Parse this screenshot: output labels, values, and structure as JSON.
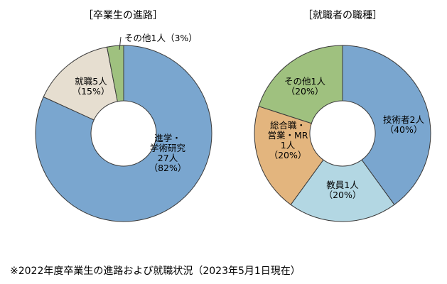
{
  "chart_data": [
    {
      "type": "pie",
      "title": "［卒業生の進路］",
      "slices": [
        {
          "label_lines": [
            "進学・",
            "学術研究",
            "27人",
            "（82%）"
          ],
          "value": 27,
          "percent": 82,
          "color": "#7aa6cf"
        },
        {
          "label_lines": [
            "就職5人",
            "（15%）"
          ],
          "value": 5,
          "percent": 15,
          "color": "#e6ded0"
        },
        {
          "label_lines": [
            "その他1人（3%）"
          ],
          "value": 1,
          "percent": 3,
          "color": "#9fc17f"
        }
      ]
    },
    {
      "type": "pie",
      "title": "［就職者の職種］",
      "slices": [
        {
          "label_lines": [
            "技術者2人",
            "（40%）"
          ],
          "value": 2,
          "percent": 40,
          "color": "#7aa6cf"
        },
        {
          "label_lines": [
            "教員1人",
            "（20%）"
          ],
          "value": 1,
          "percent": 20,
          "color": "#b3d7e3"
        },
        {
          "label_lines": [
            "総合職・",
            "営業・MR",
            "1人",
            "（20%）"
          ],
          "value": 1,
          "percent": 20,
          "color": "#e3b57e"
        },
        {
          "label_lines": [
            "その他1人",
            "（20%）"
          ],
          "value": 1,
          "percent": 20,
          "color": "#9fc17f"
        }
      ]
    }
  ],
  "footnote": "※2022年度卒業生の進路および就職状況（2023年5月1日現在）"
}
